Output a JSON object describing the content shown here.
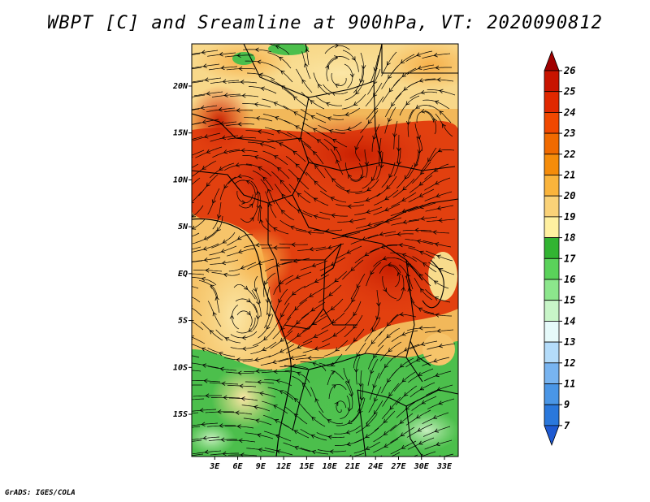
{
  "title": "WBPT [C] and Sreamline at 900hPa, VT: 2020090812",
  "footer": "GrADS: IGES/COLA",
  "map": {
    "lat_labels": [
      "20N",
      "15N",
      "10N",
      "5N",
      "EQ",
      "5S",
      "10S",
      "15S"
    ],
    "lat_values": [
      20,
      15,
      10,
      5,
      0,
      -5,
      -10,
      -15
    ],
    "lon_labels": [
      "3E",
      "6E",
      "9E",
      "12E",
      "15E",
      "18E",
      "21E",
      "24E",
      "27E",
      "30E",
      "33E"
    ],
    "lon_values": [
      3,
      6,
      9,
      12,
      15,
      18,
      21,
      24,
      27,
      30,
      33
    ],
    "lat_range": [
      -19.5,
      24.5
    ],
    "lon_range": [
      0,
      34.8
    ]
  },
  "colorbar": {
    "labels": [
      "26",
      "25",
      "24",
      "23",
      "22",
      "21",
      "20",
      "19",
      "18",
      "17",
      "16",
      "15",
      "14",
      "13",
      "12",
      "11",
      "9",
      "7"
    ],
    "colors": [
      "#a00000",
      "#c81400",
      "#e02800",
      "#f04800",
      "#f06a00",
      "#f58c0a",
      "#fab43c",
      "#fad278",
      "#fff0a0",
      "#32b432",
      "#5ad25a",
      "#8ce68c",
      "#c8f5c8",
      "#e6fafa",
      "#b4dcfa",
      "#78b4f0",
      "#4a96e6",
      "#2a78dc",
      "#1e5ad2"
    ]
  },
  "colors": {
    "hot": "#e03c14",
    "warm": "#f5a028",
    "mild": "#f8dc8c",
    "cool_green": "#5ac85a",
    "pale_green": "#a8e6a0",
    "cold": "#dcf0ff"
  }
}
